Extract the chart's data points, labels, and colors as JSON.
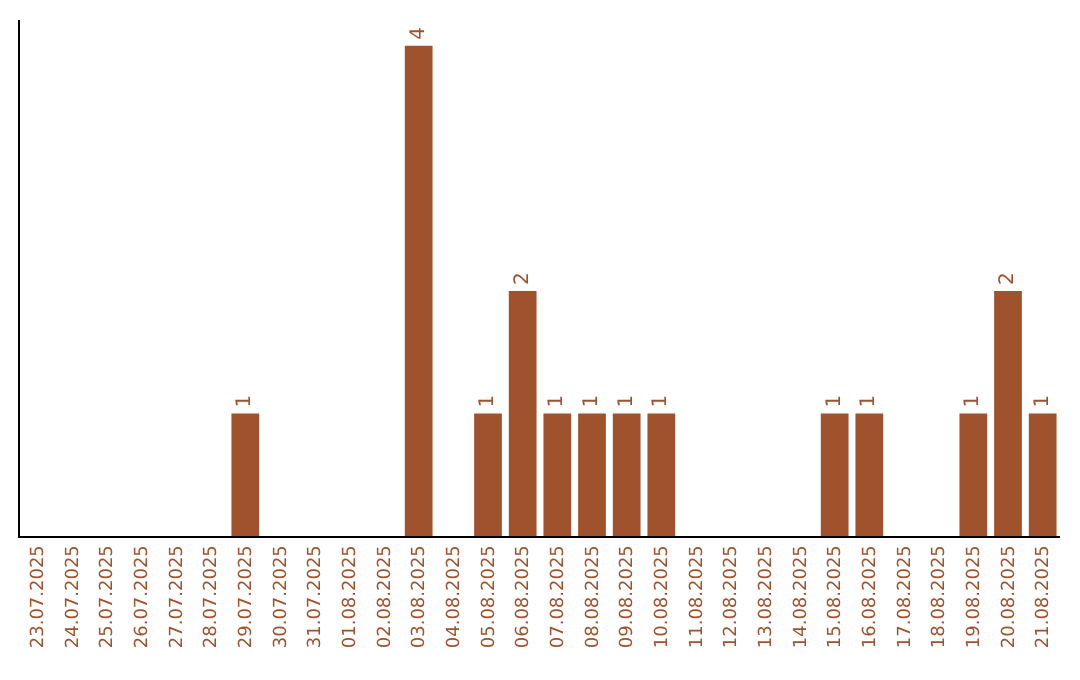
{
  "chart_data": {
    "type": "bar",
    "categories": [
      "23.07.2025",
      "24.07.2025",
      "25.07.2025",
      "26.07.2025",
      "27.07.2025",
      "28.07.2025",
      "29.07.2025",
      "30.07.2025",
      "31.07.2025",
      "01.08.2025",
      "02.08.2025",
      "03.08.2025",
      "04.08.2025",
      "05.08.2025",
      "06.08.2025",
      "07.08.2025",
      "08.08.2025",
      "09.08.2025",
      "10.08.2025",
      "11.08.2025",
      "12.08.2025",
      "13.08.2025",
      "14.08.2025",
      "15.08.2025",
      "16.08.2025",
      "17.08.2025",
      "18.08.2025",
      "19.08.2025",
      "20.08.2025",
      "21.08.2025"
    ],
    "values": [
      0,
      0,
      0,
      0,
      0,
      0,
      1,
      0,
      0,
      0,
      0,
      4,
      0,
      1,
      2,
      1,
      1,
      1,
      1,
      0,
      0,
      0,
      0,
      1,
      1,
      0,
      0,
      1,
      2,
      1
    ],
    "value_labels": [
      null,
      null,
      null,
      null,
      null,
      null,
      "1",
      null,
      null,
      null,
      null,
      "4",
      null,
      "1",
      "2",
      "1",
      "1",
      "1",
      "1",
      null,
      null,
      null,
      null,
      "1",
      "1",
      null,
      null,
      "1",
      "2",
      "1"
    ],
    "color": "#a0522d",
    "tick_labels": "x",
    "legend": false
  }
}
